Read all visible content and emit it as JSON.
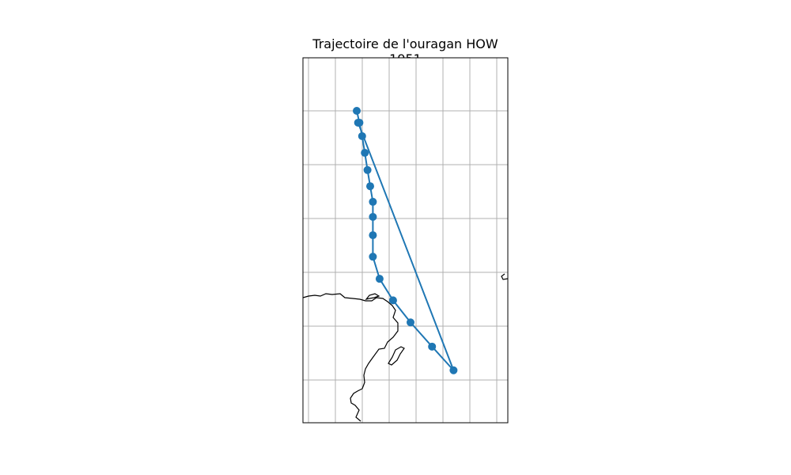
{
  "chart_data": {
    "type": "line",
    "title": "Trajectoire de l'ouragan HOW 1951",
    "xlabel": "",
    "ylabel": "",
    "grid": true,
    "map_background": true,
    "series": [
      {
        "color": "#1f77b4",
        "marker": "circle",
        "points": [
          {
            "x": 0.0,
            "y": 10.2
          },
          {
            "x": 0.2,
            "y": 9.98
          },
          {
            "x": 0.4,
            "y": 9.73
          },
          {
            "x": 0.6,
            "y": 9.42
          },
          {
            "x": 0.8,
            "y": 9.1
          },
          {
            "x": 1.0,
            "y": 8.8
          },
          {
            "x": 1.2,
            "y": 8.51
          },
          {
            "x": 1.2,
            "y": 8.23
          },
          {
            "x": 1.2,
            "y": 7.89
          },
          {
            "x": 1.2,
            "y": 7.49
          },
          {
            "x": 1.7,
            "y": 7.08
          },
          {
            "x": 2.7,
            "y": 6.68
          },
          {
            "x": 4.0,
            "y": 6.27
          },
          {
            "x": 5.6,
            "y": 5.82
          },
          {
            "x": 7.2,
            "y": 5.38
          },
          {
            "x": 0.1,
            "y": 9.98
          }
        ]
      }
    ]
  }
}
